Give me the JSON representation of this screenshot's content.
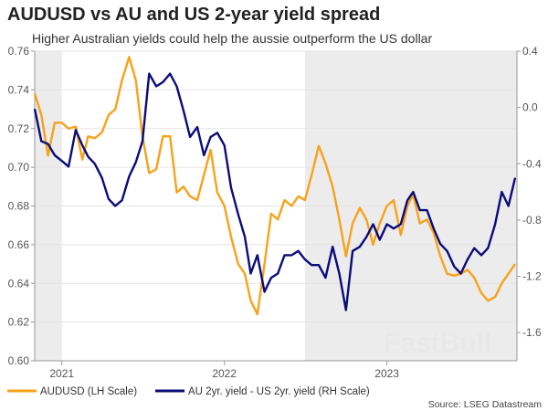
{
  "watermark": "FastBull",
  "chart_data": {
    "type": "line",
    "title": "AUDUSD vs AU and US 2-year yield spread",
    "subtitle": "Higher Australian yields could help the aussie outperform the US dollar",
    "source": "Source: LSEG Datastream",
    "x_range": [
      "2020-11-01",
      "2023-10-20"
    ],
    "x_ticks": [
      {
        "date": "2021-01-01",
        "label": "2021"
      },
      {
        "date": "2022-01-01",
        "label": "2022"
      },
      {
        "date": "2023-01-01",
        "label": "2023"
      }
    ],
    "y_left": {
      "range": [
        0.6,
        0.76
      ],
      "ticks": [
        "0.60",
        "0.62",
        "0.64",
        "0.66",
        "0.68",
        "0.70",
        "0.72",
        "0.74",
        "0.76"
      ]
    },
    "y_right": {
      "range": [
        -1.8,
        0.4
      ],
      "ticks": [
        "-1.6",
        "-1.2",
        "-0.8",
        "-0.4",
        "0.0",
        "0.4"
      ]
    },
    "grid": true,
    "legend_position": "bottom",
    "shaded_periods": [
      [
        "2020-11-01",
        "2021-01-01"
      ],
      [
        "2022-07-01",
        "2023-10-20"
      ]
    ],
    "shade_color": "#ececec",
    "x": [
      "2020-11-01",
      "2020-11-16",
      "2020-12-01",
      "2020-12-16",
      "2021-01-01",
      "2021-01-16",
      "2021-02-01",
      "2021-02-16",
      "2021-03-01",
      "2021-03-16",
      "2021-04-01",
      "2021-04-16",
      "2021-05-01",
      "2021-05-16",
      "2021-06-01",
      "2021-06-16",
      "2021-07-01",
      "2021-07-16",
      "2021-08-01",
      "2021-08-16",
      "2021-09-01",
      "2021-09-16",
      "2021-10-01",
      "2021-10-16",
      "2021-11-01",
      "2021-11-16",
      "2021-12-01",
      "2021-12-16",
      "2022-01-01",
      "2022-01-16",
      "2022-02-01",
      "2022-02-16",
      "2022-03-01",
      "2022-03-16",
      "2022-04-01",
      "2022-04-16",
      "2022-05-01",
      "2022-05-16",
      "2022-06-01",
      "2022-06-16",
      "2022-07-01",
      "2022-07-16",
      "2022-08-01",
      "2022-08-16",
      "2022-09-01",
      "2022-09-16",
      "2022-10-01",
      "2022-10-16",
      "2022-11-01",
      "2022-11-16",
      "2022-12-01",
      "2022-12-16",
      "2023-01-01",
      "2023-01-16",
      "2023-02-01",
      "2023-02-16",
      "2023-03-01",
      "2023-03-16",
      "2023-04-01",
      "2023-04-16",
      "2023-05-01",
      "2023-05-16",
      "2023-06-01",
      "2023-06-16",
      "2023-07-01",
      "2023-07-16",
      "2023-08-01",
      "2023-08-16",
      "2023-09-01",
      "2023-09-16",
      "2023-10-01",
      "2023-10-16"
    ],
    "series": [
      {
        "name": "AUDUSD (LH Scale)",
        "axis": "left",
        "color": "#F7A21B",
        "values": [
          0.738,
          0.727,
          0.706,
          0.723,
          0.723,
          0.72,
          0.721,
          0.704,
          0.716,
          0.715,
          0.718,
          0.727,
          0.73,
          0.745,
          0.757,
          0.745,
          0.716,
          0.697,
          0.699,
          0.716,
          0.716,
          0.687,
          0.69,
          0.685,
          0.683,
          0.696,
          0.709,
          0.687,
          0.68,
          0.664,
          0.65,
          0.645,
          0.631,
          0.624,
          0.65,
          0.676,
          0.673,
          0.683,
          0.68,
          0.685,
          0.683,
          0.696,
          0.711,
          0.702,
          0.69,
          0.673,
          0.654,
          0.671,
          0.679,
          0.673,
          0.66,
          0.671,
          0.68,
          0.683,
          0.665,
          0.68,
          0.686,
          0.671,
          0.673,
          0.666,
          0.654,
          0.645,
          0.644,
          0.645,
          0.647,
          0.643,
          0.635,
          0.631,
          0.633,
          0.64,
          0.645,
          0.65
        ]
      },
      {
        "name": "AU 2yr. yield - US 2yr. yield (RH Scale)",
        "axis": "right",
        "color": "#0B0B7A",
        "values": [
          -0.01,
          -0.24,
          -0.26,
          -0.34,
          -0.38,
          -0.42,
          -0.16,
          -0.27,
          -0.35,
          -0.4,
          -0.5,
          -0.65,
          -0.7,
          -0.66,
          -0.49,
          -0.39,
          -0.24,
          0.24,
          0.15,
          0.18,
          0.24,
          0.15,
          -0.02,
          -0.21,
          -0.14,
          -0.34,
          -0.21,
          -0.18,
          -0.27,
          -0.57,
          -0.76,
          -0.92,
          -1.18,
          -1.05,
          -1.31,
          -1.21,
          -1.18,
          -1.05,
          -1.05,
          -1.02,
          -1.08,
          -1.12,
          -1.12,
          -1.21,
          -0.99,
          -1.18,
          -1.44,
          -1.02,
          -0.99,
          -0.92,
          -0.83,
          -0.94,
          -0.83,
          -0.86,
          -0.83,
          -0.66,
          -0.6,
          -0.73,
          -0.73,
          -0.86,
          -0.97,
          -1.02,
          -1.13,
          -1.18,
          -1.08,
          -1.0,
          -1.05,
          -1.0,
          -0.83,
          -0.6,
          -0.7,
          -0.5
        ]
      }
    ]
  }
}
